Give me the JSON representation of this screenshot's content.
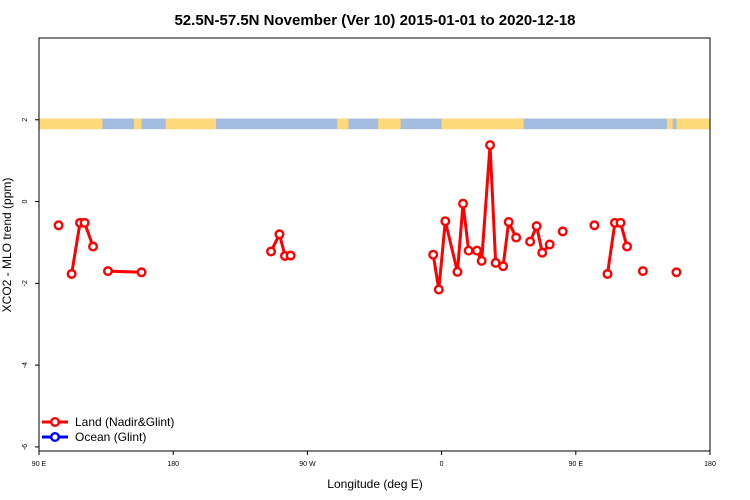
{
  "chart_data": {
    "type": "line",
    "title": "52.5N-57.5N November (Ver 10)   2015-01-01 to 2020-12-18",
    "xlabel": "Longitude (deg E)",
    "ylabel": "XCO2 - MLO trend (ppm)",
    "xlim": [
      90,
      450
    ],
    "ylim": [
      -6.1,
      4.0
    ],
    "x_ticks": [
      90,
      162,
      234,
      306,
      378,
      450
    ],
    "x_tick_labels": [
      "90 E",
      "180",
      "90 W",
      "0",
      "90 E",
      "180"
    ],
    "y_ticks": [
      -6,
      -4,
      -2,
      0,
      2
    ],
    "y_tick_labels": [
      "-6",
      "-4",
      "-2",
      "0",
      "2"
    ],
    "grid": false,
    "legend_position": "bottom-left",
    "land_ocean_strip": {
      "y_range": [
        1.77,
        2.03
      ],
      "land_color": "#FFD97A",
      "ocean_color": "#A4BCE0",
      "land_segments": [
        [
          90,
          124
        ],
        [
          141,
          145
        ],
        [
          158,
          185
        ],
        [
          250,
          256
        ],
        [
          272,
          284
        ],
        [
          306,
          350
        ],
        [
          427,
          430
        ],
        [
          432,
          450
        ]
      ]
    },
    "series": [
      {
        "name": "Land (Nadir&Glint)",
        "color": "#FF0000",
        "segments": [
          [
            [
              100.5,
              -0.58
            ]
          ],
          [
            [
              107.5,
              -1.77
            ],
            [
              112.0,
              -0.52
            ],
            [
              114.5,
              -0.52
            ],
            [
              119.0,
              -1.1
            ]
          ],
          [
            [
              127.0,
              -1.7
            ],
            [
              145.0,
              -1.73
            ]
          ],
          [
            [
              214.5,
              -1.22
            ],
            [
              219.0,
              -0.8
            ],
            [
              222.0,
              -1.33
            ],
            [
              225.0,
              -1.32
            ]
          ],
          [
            [
              301.5,
              -1.3
            ],
            [
              304.5,
              -2.15
            ],
            [
              308.0,
              -0.48
            ],
            [
              314.5,
              -1.72
            ],
            [
              317.5,
              -0.05
            ],
            [
              320.5,
              -1.2
            ],
            [
              325.0,
              -1.2
            ],
            [
              327.5,
              -1.45
            ],
            [
              332.0,
              1.38
            ],
            [
              335.0,
              -1.5
            ],
            [
              339.0,
              -1.58
            ],
            [
              342.0,
              -0.5
            ],
            [
              346.0,
              -0.88
            ]
          ],
          [
            [
              353.5,
              -0.98
            ],
            [
              357.0,
              -0.6
            ],
            [
              360.0,
              -1.25
            ],
            [
              364.0,
              -1.05
            ]
          ],
          [
            [
              371.0,
              -0.73
            ]
          ],
          [
            [
              388.0,
              -0.58
            ]
          ],
          [
            [
              395.0,
              -1.77
            ],
            [
              399.0,
              -0.52
            ],
            [
              402.0,
              -0.52
            ],
            [
              405.5,
              -1.1
            ]
          ],
          [
            [
              414.0,
              -1.7
            ]
          ],
          [
            [
              432.0,
              -1.73
            ]
          ]
        ]
      },
      {
        "name": "Ocean (Glint)",
        "color": "#0000FF",
        "segments": []
      }
    ]
  }
}
